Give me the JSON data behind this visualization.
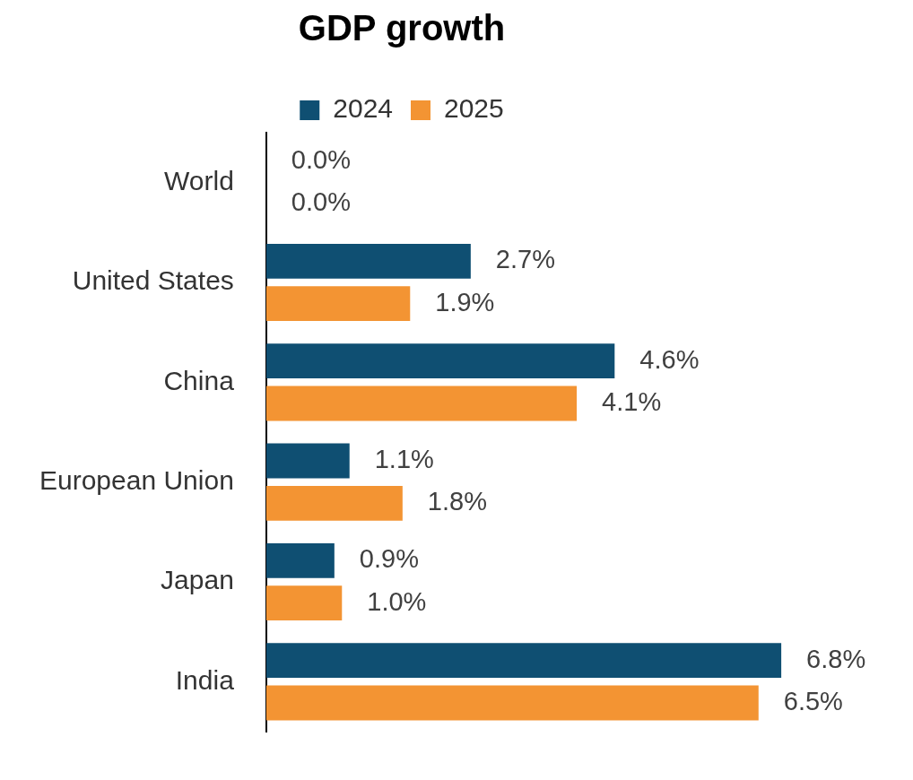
{
  "chart_data": {
    "type": "bar",
    "title": "GDP growth",
    "orientation": "horizontal",
    "legend": "top",
    "tick_labels": "y",
    "categories": [
      "World",
      "United States",
      "China",
      "European Union",
      "Japan",
      "India"
    ],
    "series": [
      {
        "name": "2024",
        "color": "#0f4f72",
        "values": [
          0.0,
          2.7,
          4.6,
          1.1,
          0.9,
          6.8
        ],
        "value_labels": [
          "0.0%",
          "2.7%",
          "4.6%",
          "1.1%",
          "0.9%",
          "6.8%"
        ]
      },
      {
        "name": "2025",
        "color": "#f39433",
        "values": [
          0.0,
          1.9,
          4.1,
          1.8,
          1.0,
          6.5
        ],
        "value_labels": [
          "0.0%",
          "1.9%",
          "4.1%",
          "1.8%",
          "1.0%",
          "6.5%"
        ]
      }
    ]
  }
}
